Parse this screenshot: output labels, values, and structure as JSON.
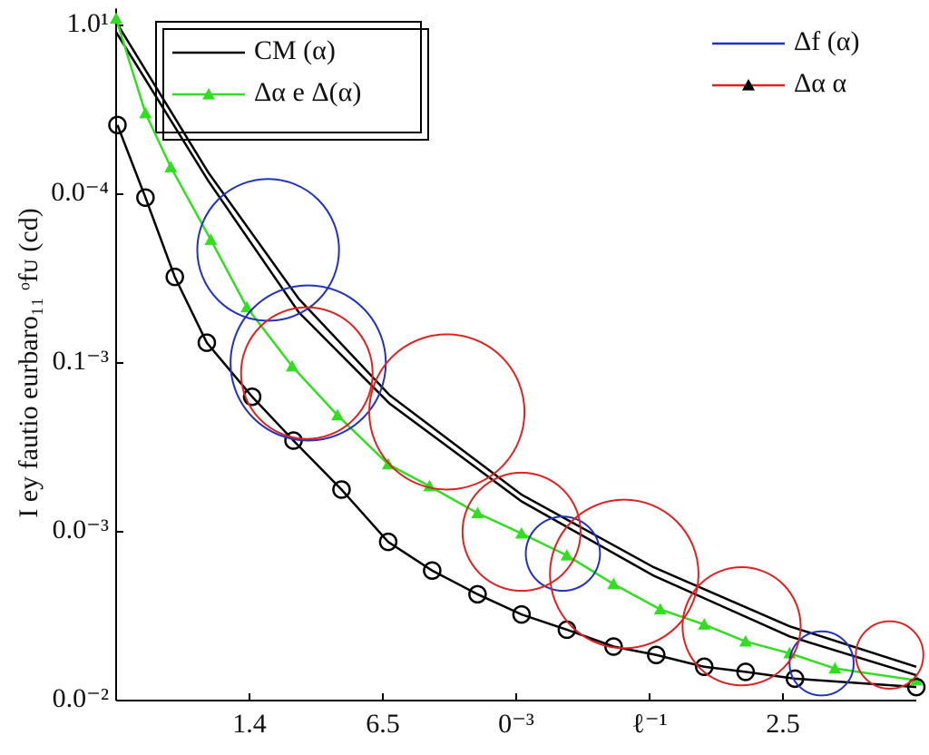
{
  "chart_data": {
    "type": "line",
    "y_label": "I ey fautio eurbaro₁₁ ᵒfᴜ (cd)",
    "xlim": [
      0,
      6
    ],
    "ylim": [
      0,
      4.1
    ],
    "xticks": [
      {
        "value": 1,
        "label": "1.4"
      },
      {
        "value": 2,
        "label": "6.5"
      },
      {
        "value": 3,
        "label": "0⁻³"
      },
      {
        "value": 4,
        "label": "ℓ⁻¹"
      },
      {
        "value": 5,
        "label": "2.5"
      }
    ],
    "yticks": [
      {
        "value": 0,
        "label": "0.0⁻²"
      },
      {
        "value": 1,
        "label": "0.0⁻³"
      },
      {
        "value": 2,
        "label": "0.1⁻³"
      },
      {
        "value": 3,
        "label": "0.0⁻⁴"
      },
      {
        "value": 4,
        "label": "1.0¹"
      }
    ],
    "series": [
      {
        "name": "CM (α)",
        "type": "line",
        "color": "#000000",
        "legend": "upper left",
        "x": [
          0,
          0.69,
          1.37,
          2.05,
          3.04,
          4.03,
          5.05,
          6
        ],
        "values": [
          4.02,
          3.13,
          2.38,
          1.81,
          1.22,
          0.79,
          0.44,
          0.2
        ]
      },
      {
        "type": "line",
        "color": "#000000",
        "x": [
          0,
          0.69,
          1.37,
          2.05,
          3.04,
          4.03,
          5.05,
          6
        ],
        "values": [
          3.96,
          3.08,
          2.3,
          1.76,
          1.18,
          0.74,
          0.38,
          0.15
        ]
      },
      {
        "name": "Δα e Δ(α)",
        "type": "line",
        "color": "#33dd22",
        "marker": "triangle",
        "legend": "upper left",
        "x": [
          0,
          0.22,
          0.41,
          0.71,
          0.98,
          1.32,
          1.66,
          2.04,
          2.35,
          2.71,
          3.04,
          3.38,
          3.73,
          4.08,
          4.41,
          4.72,
          5.05,
          5.39,
          6
        ],
        "values": [
          4.04,
          3.48,
          3.16,
          2.73,
          2.33,
          1.98,
          1.69,
          1.4,
          1.27,
          1.11,
          0.99,
          0.86,
          0.69,
          0.54,
          0.45,
          0.35,
          0.28,
          0.19,
          0.12
        ]
      },
      {
        "type": "line",
        "color": "#000000",
        "marker": "circle",
        "x": [
          0.01,
          0.22,
          0.44,
          0.68,
          1.02,
          1.33,
          1.69,
          2.04,
          2.37,
          2.71,
          3.04,
          3.38,
          3.73,
          4.05,
          4.41,
          4.72,
          5.09,
          6
        ],
        "values": [
          3.41,
          2.98,
          2.51,
          2.12,
          1.8,
          1.54,
          1.25,
          0.94,
          0.77,
          0.63,
          0.51,
          0.42,
          0.32,
          0.27,
          0.2,
          0.17,
          0.13,
          0.08
        ]
      },
      {
        "name": "Δf (α)",
        "type": "bubble",
        "color": "#2233bb",
        "legend": "upper right",
        "x": [
          1.14,
          1.44,
          3.35,
          5.29
        ],
        "values": [
          2.67,
          2.0,
          0.87,
          0.22
        ],
        "sizes": [
          0.42,
          0.46,
          0.22,
          0.19
        ]
      },
      {
        "name": "Δα α",
        "type": "bubble",
        "color": "#dd2222",
        "marker": "triangle",
        "marker_color": "#000000",
        "legend": "upper right",
        "x": [
          1.43,
          2.48,
          3.04,
          3.81,
          4.69,
          5.8
        ],
        "values": [
          1.94,
          1.71,
          1.0,
          0.75,
          0.44,
          0.27
        ],
        "sizes": [
          0.39,
          0.46,
          0.35,
          0.44,
          0.35,
          0.2
        ]
      }
    ]
  }
}
